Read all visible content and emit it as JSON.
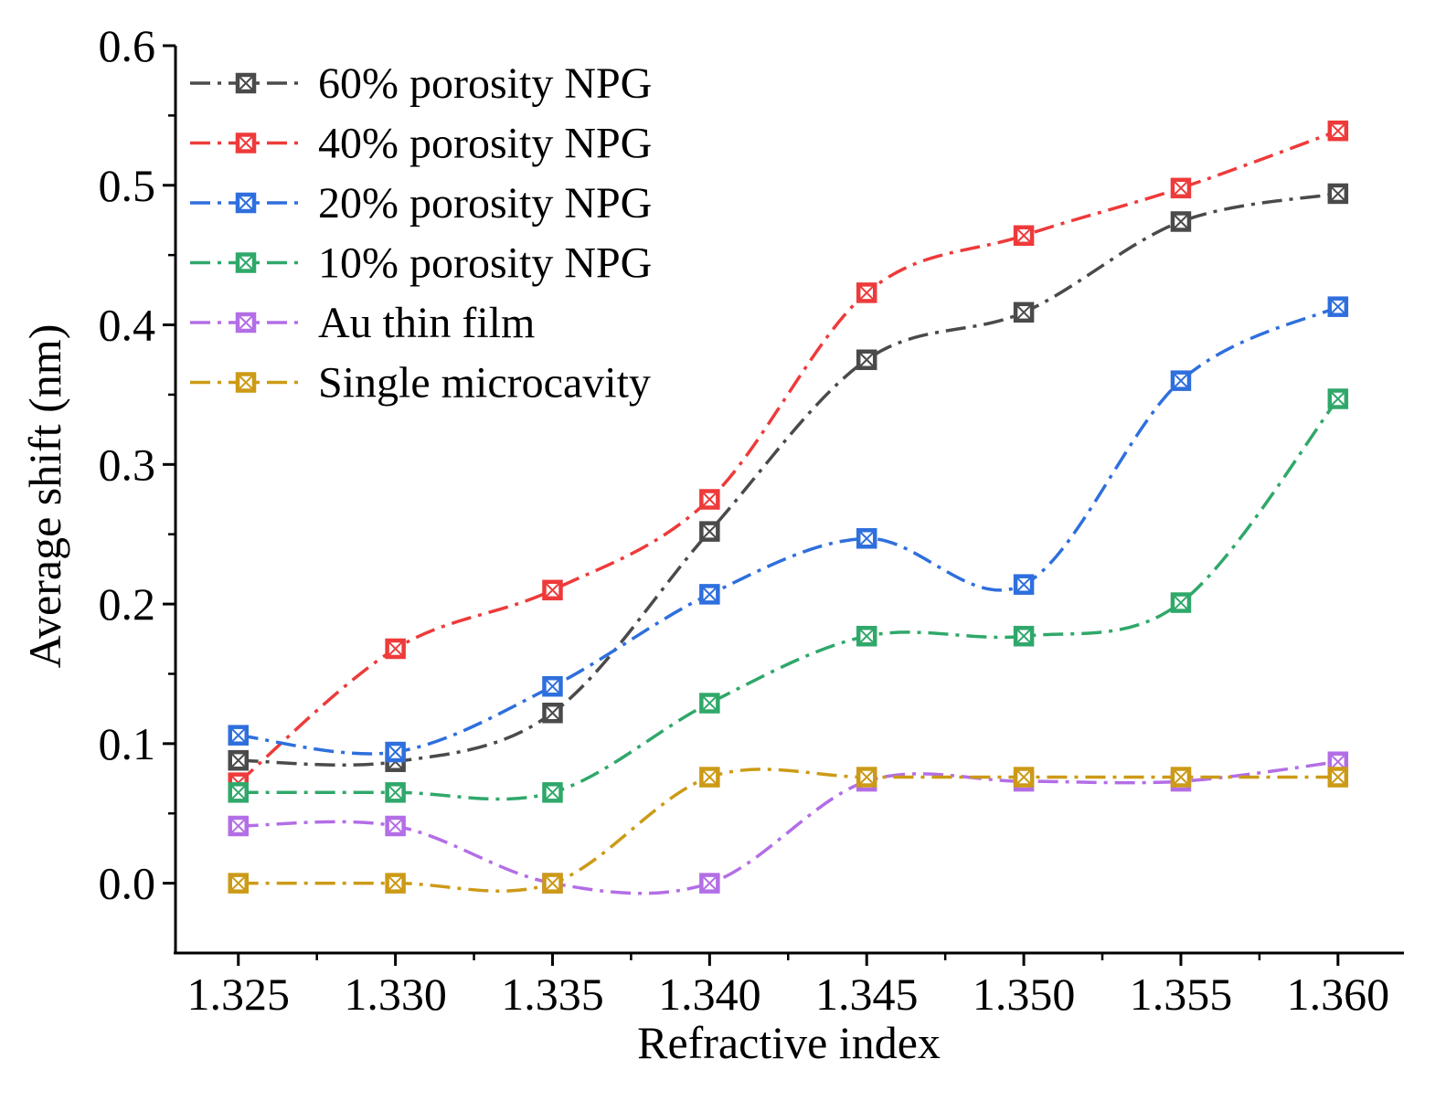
{
  "chart_data": {
    "type": "line",
    "title": "",
    "xlabel": "Refractive index",
    "ylabel": "Average shift (nm)",
    "x": [
      1.325,
      1.33,
      1.335,
      1.34,
      1.345,
      1.35,
      1.355,
      1.36
    ],
    "x_tick_labels": [
      "1.325",
      "1.330",
      "1.335",
      "1.340",
      "1.345",
      "1.350",
      "1.355",
      "1.360"
    ],
    "xlim": [
      1.323,
      1.3621
    ],
    "ylim": [
      -0.05,
      0.6
    ],
    "y_ticks": [
      0.0,
      0.1,
      0.2,
      0.3,
      0.4,
      0.5,
      0.6
    ],
    "y_tick_labels": [
      "0.0",
      "0.1",
      "0.2",
      "0.3",
      "0.4",
      "0.5",
      "0.6"
    ],
    "grid": false,
    "legend_position": "top-left",
    "line_style": "dash-dot, smoothed",
    "marker": "square with cross",
    "series": [
      {
        "name": "60% porosity NPG",
        "color": "#4a4a4a",
        "values": [
          0.088,
          0.087,
          0.122,
          0.252,
          0.375,
          0.409,
          0.474,
          0.494
        ]
      },
      {
        "name": "40% porosity NPG",
        "color": "#ee3a3a",
        "values": [
          0.072,
          0.168,
          0.21,
          0.275,
          0.423,
          0.464,
          0.498,
          0.539
        ]
      },
      {
        "name": "20% porosity NPG",
        "color": "#2e6fdd",
        "values": [
          0.106,
          0.094,
          0.141,
          0.207,
          0.247,
          0.214,
          0.36,
          0.413
        ]
      },
      {
        "name": "10% porosity NPG",
        "color": "#2fa86a",
        "values": [
          0.065,
          0.065,
          0.065,
          0.129,
          0.177,
          0.177,
          0.201,
          0.347
        ]
      },
      {
        "name": "Au thin film",
        "color": "#b36ee6",
        "values": [
          0.041,
          0.041,
          0.0,
          0.0,
          0.073,
          0.073,
          0.073,
          0.087
        ]
      },
      {
        "name": "Single microcavity",
        "color": "#cc9a16",
        "values": [
          0.0,
          0.0,
          0.0,
          0.076,
          0.076,
          0.076,
          0.076,
          0.076
        ]
      }
    ]
  }
}
